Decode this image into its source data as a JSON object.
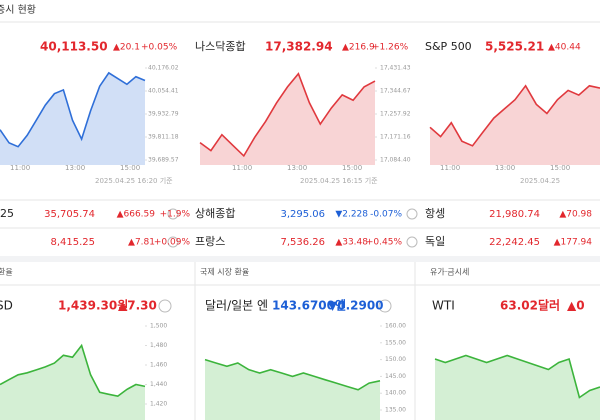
{
  "header": {
    "title": "증시 현황"
  },
  "indices": [
    {
      "price": "40,113.50",
      "change": "▲20.1",
      "rate": "+0.05%",
      "time": "2025.04.25 16:20 기준",
      "xticks": [
        "11:00",
        "13:00",
        "15:00"
      ],
      "chart": {
        "color": "#2f6fd8",
        "ylim": [
          39689.57,
          40176.02
        ],
        "yticks": [
          {
            "value": 40176.02,
            "label": "40,176.02"
          },
          {
            "value": 40054.41,
            "label": "40,054.41"
          },
          {
            "value": 39932.79,
            "label": "39,932.79"
          },
          {
            "value": 39811.18,
            "label": "39,811.18"
          },
          {
            "value": 39689.57,
            "label": "39,689.57"
          }
        ],
        "values": [
          39850,
          39780,
          39760,
          39820,
          39900,
          39980,
          40040,
          40060,
          39900,
          39800,
          39950,
          40080,
          40150,
          40120,
          40090,
          40130,
          40110
        ]
      }
    },
    {
      "name": "나스닥종합",
      "price": "17,382.94",
      "change": "▲216.9",
      "rate": "+1.26%",
      "time": "2025.04.25 16:15 기준",
      "xticks": [
        "11:00",
        "13:00",
        "15:00"
      ],
      "chart": {
        "color": "#e0393e",
        "ylim": [
          17084.4,
          17431.43
        ],
        "yticks": [
          {
            "value": 17431.43,
            "label": "17,431.43"
          },
          {
            "value": 17344.67,
            "label": "17,344.67"
          },
          {
            "value": 17257.92,
            "label": "17,257.92"
          },
          {
            "value": 17171.16,
            "label": "17,171.16"
          },
          {
            "value": 17084.4,
            "label": "17,084.40"
          }
        ],
        "values": [
          17150,
          17120,
          17180,
          17140,
          17100,
          17170,
          17230,
          17300,
          17360,
          17410,
          17300,
          17220,
          17280,
          17330,
          17310,
          17360,
          17382
        ]
      }
    },
    {
      "name": "S&P 500",
      "price": "5,525.21",
      "change": "▲40.44",
      "time": "2025.04.25",
      "xticks": [
        "11:00",
        "13:00",
        "15:00"
      ],
      "chart": {
        "color": "#e0393e",
        "ylim": [
          5380,
          5560
        ],
        "values": [
          5440,
          5420,
          5450,
          5410,
          5400,
          5430,
          5460,
          5480,
          5500,
          5530,
          5490,
          5470,
          5500,
          5520,
          5510,
          5530,
          5525
        ]
      }
    }
  ],
  "table": {
    "rows": [
      [
        {
          "name": "25",
          "price": "35,705.74",
          "change": "▲666.59",
          "rate": "+1.9%"
        },
        {
          "name": "상해종합",
          "price": "3,295.06",
          "change": "▼2.228",
          "rate": "-0.07%"
        },
        {
          "name": "항셍",
          "price": "21,980.74",
          "change": "▲70.98"
        }
      ],
      [
        {
          "price": "8,415.25",
          "change": "▲7.81",
          "rate": "+0.09%"
        },
        {
          "name": "프랑스",
          "price": "7,536.26",
          "change": "▲33.48",
          "rate": "+0.45%"
        },
        {
          "name": "독일",
          "price": "22,242.45",
          "change": "▲177.94"
        }
      ]
    ]
  },
  "fx": {
    "sections": [
      {
        "title": "환율",
        "name": "SD",
        "price": "1,439.30원",
        "change": "▲7.30",
        "chart": {
          "color": "#3cb43c",
          "ylim": [
            1420,
            1500
          ],
          "yticks": [
            {
              "value": 1500,
              "label": "1,500"
            },
            {
              "value": 1480,
              "label": "1,480"
            },
            {
              "value": 1460,
              "label": "1,460"
            },
            {
              "value": 1440,
              "label": "1,440"
            },
            {
              "value": 1420,
              "label": "1,420"
            }
          ],
          "values": [
            1440,
            1445,
            1450,
            1452,
            1455,
            1458,
            1462,
            1470,
            1468,
            1480,
            1450,
            1432,
            1430,
            1428,
            1435,
            1440,
            1438
          ]
        }
      },
      {
        "title": "국제 시장 환율",
        "name": "달러/일본 엔",
        "price": "143.6700엔",
        "change": "▼0.2900",
        "chart": {
          "color": "#3cb43c",
          "ylim": [
            135,
            160
          ],
          "yticks": [
            {
              "value": 160,
              "label": "160.00"
            },
            {
              "value": 155,
              "label": "155.00"
            },
            {
              "value": 150,
              "label": "150.00"
            },
            {
              "value": 145,
              "label": "145.00"
            },
            {
              "value": 140,
              "label": "140.00"
            },
            {
              "value": 135,
              "label": "135.00"
            }
          ],
          "values": [
            150,
            149,
            148,
            149,
            147,
            146,
            147,
            146,
            145,
            146,
            145,
            144,
            143,
            142,
            141,
            143,
            143.7
          ]
        }
      },
      {
        "title": "유가·금시세",
        "name": "WTI",
        "price": "63.02달러",
        "change": "▲0",
        "chart": {
          "color": "#3cb43c",
          "ylim": [
            55,
            75
          ],
          "values": [
            71,
            70,
            71,
            72,
            71,
            70,
            71,
            72,
            71,
            70,
            69,
            68,
            70,
            71,
            60,
            62,
            63
          ]
        }
      }
    ]
  }
}
